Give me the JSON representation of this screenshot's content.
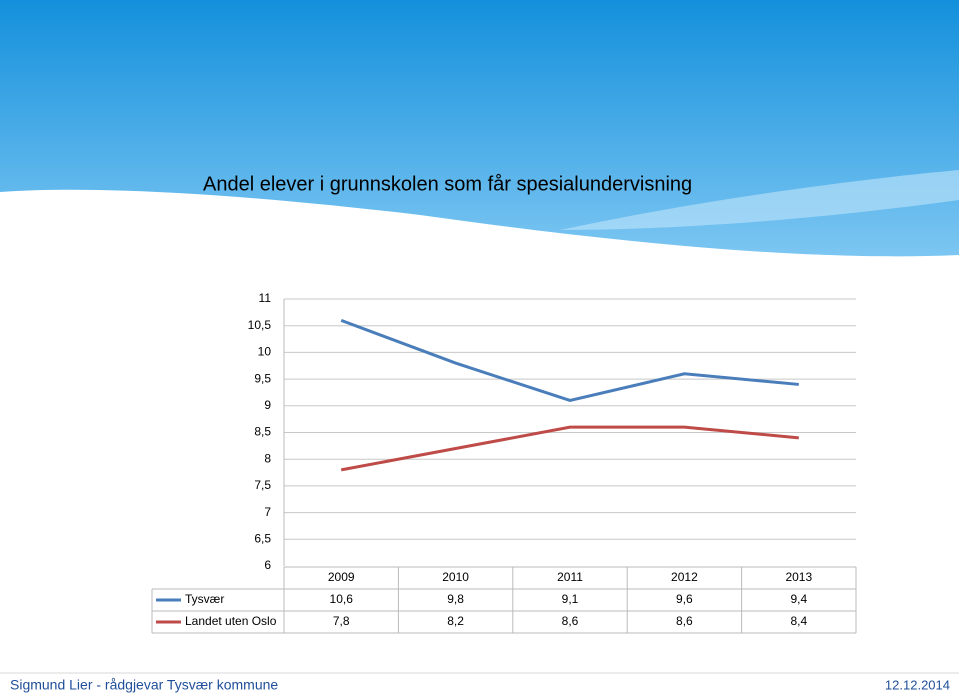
{
  "chart_data": {
    "type": "line",
    "title": "Andel elever i grunnskolen som får spesialundervisning",
    "categories": [
      "2009",
      "2010",
      "2011",
      "2012",
      "2013"
    ],
    "series": [
      {
        "name": "Tysvær",
        "color": "#4a7ebb",
        "values": [
          10.6,
          9.8,
          9.1,
          9.6,
          9.4
        ],
        "value_labels": [
          "10,6",
          "9,8",
          "9,1",
          "9,6",
          "9,4"
        ]
      },
      {
        "name": "Landet uten Oslo",
        "color": "#be4b48",
        "values": [
          7.8,
          8.2,
          8.6,
          8.6,
          8.4
        ],
        "value_labels": [
          "7,8",
          "8,2",
          "8,6",
          "8,6",
          "8,4"
        ]
      }
    ],
    "ylim": [
      6,
      11
    ],
    "yticks": [
      6,
      {
        "value": 6.5,
        "label": "6,5"
      },
      7,
      {
        "value": 7.5,
        "label": "7,5"
      },
      8,
      {
        "value": 8.5,
        "label": "8,5"
      },
      9,
      {
        "value": 9.5,
        "label": "9,5"
      },
      10,
      {
        "value": 10.5,
        "label": "10,5"
      },
      11
    ],
    "grid": true
  },
  "footer": {
    "left": "Sigmund Lier - rådgjevar Tysvær kommune",
    "right": "12.12.2014"
  }
}
